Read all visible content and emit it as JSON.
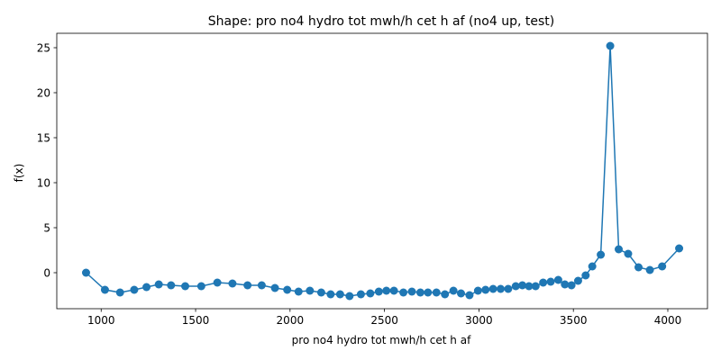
{
  "chart_data": {
    "type": "line",
    "title": "Shape: pro no4 hydro tot mwh/h cet h af (no4 up, test)",
    "xlabel": "pro no4 hydro tot mwh/h cet h af",
    "ylabel": "f(x)",
    "xlim": [
      765,
      4210
    ],
    "ylim": [
      -4.0,
      26.6
    ],
    "xticks": [
      1000,
      1500,
      2000,
      2500,
      3000,
      3500,
      4000
    ],
    "yticks": [
      0,
      5,
      10,
      15,
      20,
      25
    ],
    "grid": false,
    "legend": "none",
    "marker": "circle",
    "series_color": "#1f77b4",
    "series": [
      {
        "x": [
          920,
          1020,
          1100,
          1175,
          1240,
          1305,
          1370,
          1445,
          1530,
          1615,
          1695,
          1775,
          1850,
          1920,
          1985,
          2045,
          2105,
          2165,
          2215,
          2265,
          2315,
          2375,
          2425,
          2470,
          2510,
          2550,
          2600,
          2645,
          2690,
          2730,
          2775,
          2820,
          2865,
          2905,
          2950,
          2995,
          3035,
          3075,
          3115,
          3155,
          3195,
          3230,
          3265,
          3300,
          3340,
          3380,
          3420,
          3455,
          3490,
          3525,
          3565,
          3600,
          3645,
          3695,
          3740,
          3790,
          3845,
          3905,
          3970,
          4060
        ],
        "y": [
          0.0,
          -1.9,
          -2.2,
          -1.9,
          -1.6,
          -1.3,
          -1.4,
          -1.5,
          -1.5,
          -1.1,
          -1.2,
          -1.4,
          -1.4,
          -1.7,
          -1.9,
          -2.1,
          -2.0,
          -2.2,
          -2.4,
          -2.4,
          -2.6,
          -2.4,
          -2.3,
          -2.1,
          -2.0,
          -2.0,
          -2.2,
          -2.1,
          -2.2,
          -2.2,
          -2.2,
          -2.4,
          -2.0,
          -2.3,
          -2.5,
          -2.0,
          -1.9,
          -1.8,
          -1.8,
          -1.8,
          -1.5,
          -1.4,
          -1.5,
          -1.5,
          -1.1,
          -1.0,
          -0.8,
          -1.3,
          -1.4,
          -0.9,
          -0.3,
          0.7,
          2.0,
          25.2,
          2.6,
          2.1,
          0.6,
          0.3,
          0.7,
          2.7
        ]
      }
    ]
  }
}
